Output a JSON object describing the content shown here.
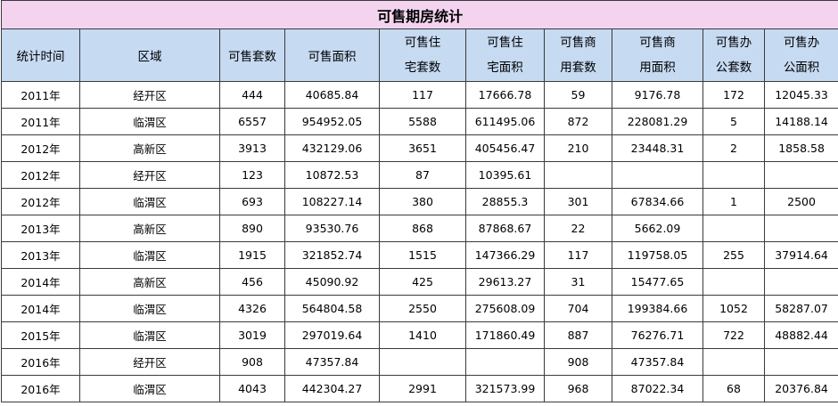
{
  "table": {
    "title": "可售期房统计",
    "headers": [
      "统计时间",
      "区域",
      "可售套数",
      "可售面积",
      "可售住宅套数",
      "可售住宅面积",
      "可售商用套数",
      "可售商用面积",
      "可售办公套数",
      "可售办公面积"
    ],
    "rows": [
      [
        "2011年",
        "经开区",
        444,
        40685.84,
        117,
        17666.78,
        59,
        9176.78,
        172,
        12045.33
      ],
      [
        "2011年",
        "临渭区",
        6557,
        954952.05,
        5588,
        611495.06,
        872,
        228081.29,
        5,
        14188.14
      ],
      [
        "2012年",
        "高新区",
        3913,
        432129.06,
        3651,
        405456.47,
        210,
        23448.31,
        2,
        1858.58
      ],
      [
        "2012年",
        "经开区",
        123,
        10872.53,
        87,
        10395.61,
        null,
        null,
        null,
        null
      ],
      [
        "2012年",
        "临渭区",
        693,
        108227.14,
        380,
        28855.3,
        301,
        67834.66,
        1,
        2500
      ],
      [
        "2013年",
        "高新区",
        890,
        93530.76,
        868,
        87868.67,
        22,
        5662.09,
        null,
        null
      ],
      [
        "2013年",
        "临渭区",
        1915,
        321852.74,
        1515,
        147366.29,
        117,
        119758.05,
        255,
        37914.64
      ],
      [
        "2014年",
        "高新区",
        456,
        45090.92,
        425,
        29613.27,
        31,
        15477.65,
        null,
        null
      ],
      [
        "2014年",
        "临渭区",
        4326,
        564804.58,
        2550,
        275608.09,
        704,
        199384.66,
        1052,
        58287.07
      ],
      [
        "2015年",
        "临渭区",
        3019,
        297019.64,
        1410,
        171860.49,
        887,
        76276.71,
        722,
        48882.44
      ],
      [
        "2016年",
        "经开区",
        908,
        47357.84,
        null,
        null,
        908,
        47357.84,
        null,
        null
      ],
      [
        "2016年",
        "临渭区",
        4043,
        442304.27,
        2991,
        321573.99,
        968,
        87022.34,
        68,
        20376.84
      ]
    ]
  }
}
